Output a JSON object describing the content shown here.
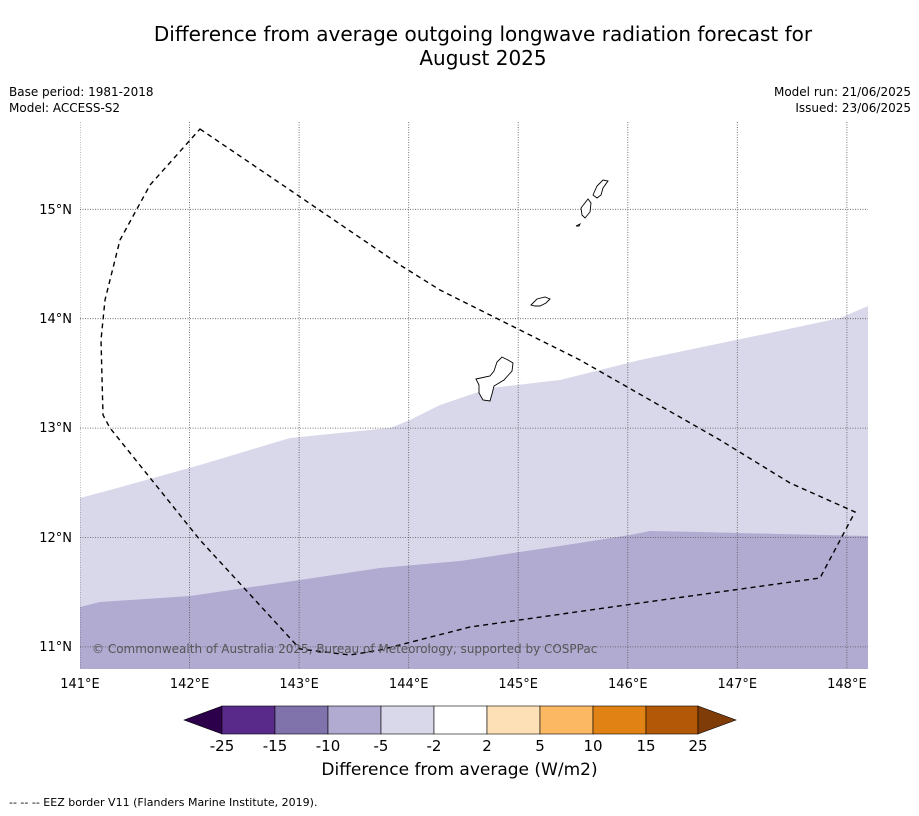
{
  "title": {
    "line1": "Difference from average outgoing longwave radiation forecast for",
    "line2": "August 2025"
  },
  "meta": {
    "base_period": "Base period: 1981-2018",
    "model": "Model: ACCESS-S2",
    "model_run": "Model run: 21/06/2025",
    "issued": "Issued: 23/06/2025"
  },
  "map": {
    "lon_range": [
      141,
      148.2
    ],
    "lat_range": [
      10.8,
      15.8
    ],
    "lon_ticks": [
      "141°E",
      "142°E",
      "143°E",
      "144°E",
      "145°E",
      "146°E",
      "147°E",
      "148°E"
    ],
    "lat_ticks": [
      "11°N",
      "12°N",
      "13°N",
      "14°N",
      "15°N"
    ],
    "copyright": "© Commonwealth of Australia 2025, Bureau of Meteorology, supported by COSPPac",
    "colors": {
      "band_minus5_minus2": "#d8d8ea",
      "band_minus10_minus5": "#b1aad1",
      "gridline": "#555555",
      "eez": "#000000"
    }
  },
  "colorbar": {
    "tick_labels": [
      "-25",
      "-15",
      "-10",
      "-5",
      "-2",
      "2",
      "5",
      "10",
      "15",
      "25"
    ],
    "colors": [
      "#2d004b",
      "#5a2a8b",
      "#8073ac",
      "#b1aad1",
      "#d8d8ea",
      "#ffffff",
      "#fde0b6",
      "#fdb863",
      "#e08214",
      "#b35806",
      "#7f3b08"
    ],
    "label": "Difference from average (W/m2)"
  },
  "footer": {
    "eez_legend": "--  --  -- EEZ border V11 (Flanders Marine Institute, 2019)."
  }
}
